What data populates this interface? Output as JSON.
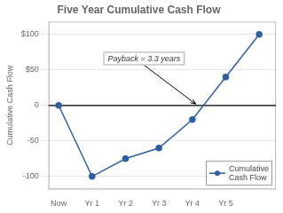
{
  "chart_data": {
    "type": "line",
    "title": "Five Year Cumulative Cash Flow",
    "y_label": "Cumulative Cash Flow",
    "x": [
      0,
      1,
      2,
      3,
      4,
      5,
      6
    ],
    "series": [
      {
        "name": "Cumulative\nCash Flow",
        "color": "#2E5FA3",
        "values": [
          0,
          -100,
          -75,
          -60,
          -20,
          40,
          100
        ],
        "marker": "circle"
      }
    ],
    "xlim": [
      -0.3,
      6.5
    ],
    "xticks": [
      {
        "value": 0,
        "label": "Now"
      },
      {
        "value": 1,
        "label": "Yr 1"
      },
      {
        "value": 2,
        "label": "Yr 2"
      },
      {
        "value": 3,
        "label": "Yr 3"
      },
      {
        "value": 4,
        "label": "Yr 4"
      },
      {
        "value": 5,
        "label": "Yr 5"
      }
    ],
    "ylim": [
      -118,
      118
    ],
    "yticks": [
      -100,
      -50,
      0,
      {
        "value": 50,
        "label": "$50"
      },
      {
        "value": 100,
        "label": "$100"
      }
    ],
    "grid": "y",
    "legend": "lower right",
    "annotations": [
      {
        "text": "Payback = 3.3 years",
        "x": 4.1,
        "y": 2
      }
    ]
  }
}
